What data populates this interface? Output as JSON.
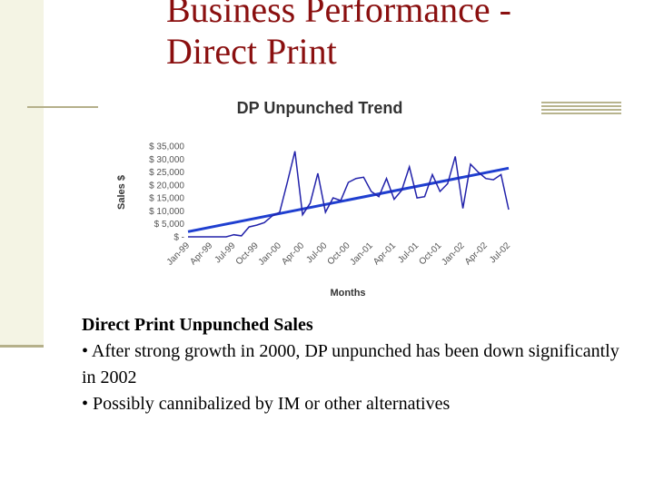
{
  "slide": {
    "title_line1": "Business Performance -",
    "title_line2": "Direct Print",
    "title_color": "#8a0f0f",
    "accent_color": "#b5b08a"
  },
  "body": {
    "heading": "Direct Print Unpunched Sales",
    "bullets": [
      "• After strong growth in 2000, DP unpunched has been down significantly in 2002",
      "• Possibly cannibalized by IM or other alternatives"
    ]
  },
  "chart_data": {
    "type": "line",
    "title": "DP Unpunched Trend",
    "xlabel": "Months",
    "ylabel": "Sales $",
    "ylim": [
      0,
      35000
    ],
    "y_tick_labels": [
      "$ -",
      "$ 5,000",
      "$ 10,000",
      "$ 15,000",
      "$ 20,000",
      "$ 25,000",
      "$ 30,000",
      "$ 35,000"
    ],
    "x_tick_labels": [
      "Jan-99",
      "Apr-99",
      "Jul-99",
      "Oct-99",
      "Jan-00",
      "Apr-00",
      "Jul-00",
      "Oct-00",
      "Jan-01",
      "Apr-01",
      "Jul-01",
      "Oct-01",
      "Jan-02",
      "Apr-02",
      "Jul-02"
    ],
    "x_tick_month_index": [
      0,
      3,
      6,
      9,
      12,
      15,
      18,
      21,
      24,
      27,
      30,
      33,
      36,
      39,
      42
    ],
    "series": [
      {
        "color": "#2222aa",
        "values": [
          0,
          0,
          0,
          0,
          0,
          0,
          800,
          400,
          3800,
          4500,
          5500,
          8000,
          9500,
          21000,
          33000,
          8500,
          13000,
          24500,
          9500,
          15000,
          14000,
          21000,
          22500,
          23000,
          17500,
          15500,
          22500,
          14500,
          18000,
          27000,
          15000,
          15500,
          24000,
          17500,
          20500,
          31000,
          11000,
          28000,
          25000,
          22500,
          22000,
          24000,
          10500
        ]
      }
    ],
    "trendline": {
      "color": "#1f3fd0",
      "start": 2000,
      "end": 26500
    },
    "grid": false,
    "legend": "none"
  }
}
